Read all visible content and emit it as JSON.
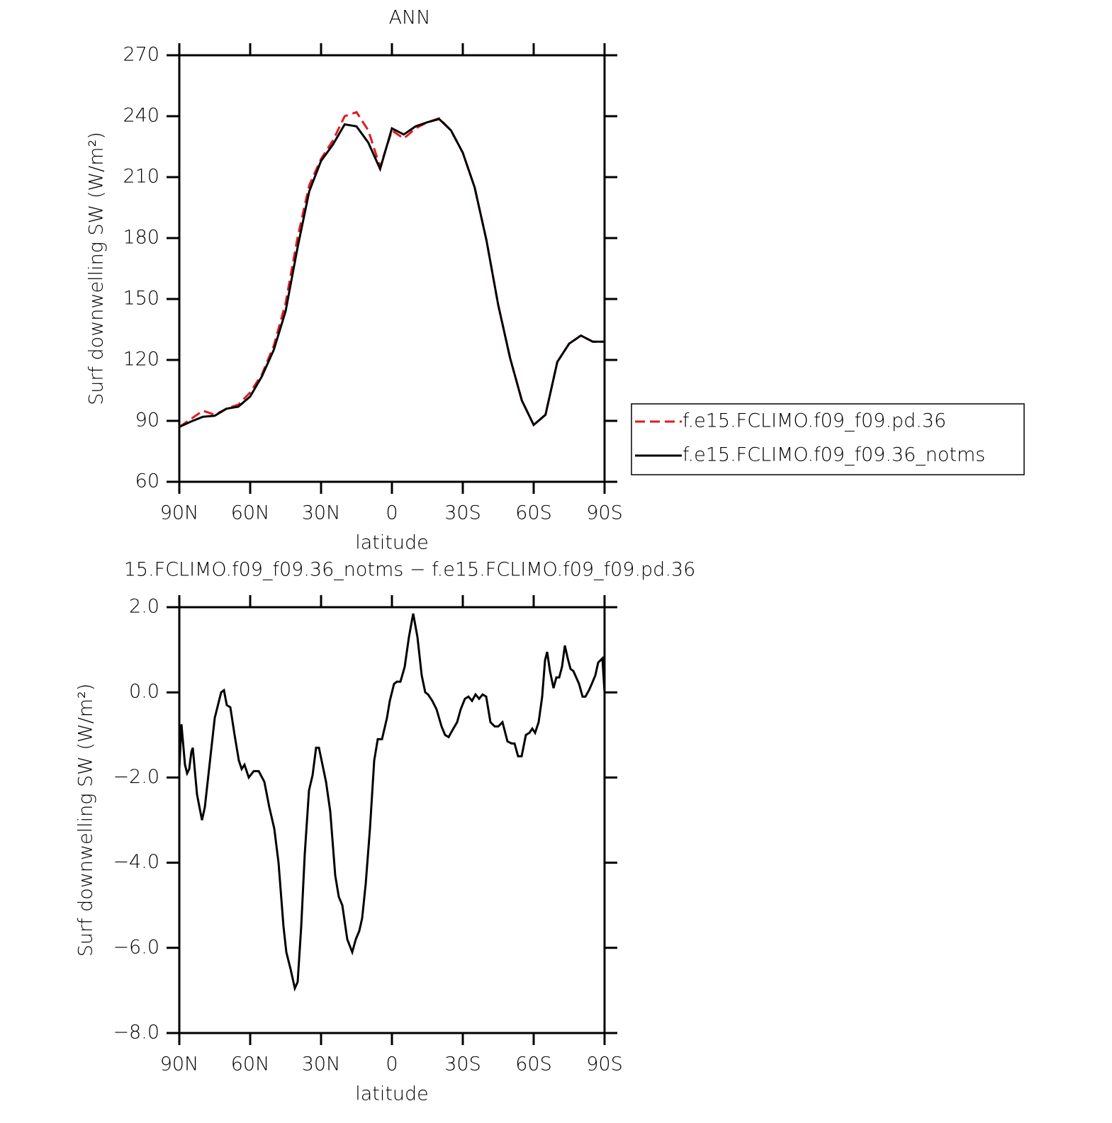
{
  "chart_data": [
    {
      "type": "line",
      "title": "ANN",
      "x_label": "latitude",
      "y_label": "Surf downwelling SW (W/m²)",
      "x": [
        90,
        85,
        80,
        75,
        70,
        65,
        60,
        55,
        50,
        45,
        40,
        35,
        30,
        25,
        20,
        15,
        10,
        5,
        0,
        -5,
        -10,
        -15,
        -20,
        -25,
        -30,
        -35,
        -40,
        -45,
        -50,
        -55,
        -60,
        -65,
        -70,
        -75,
        -80,
        -85,
        -90
      ],
      "series": [
        {
          "name": "f.e15.FCLIMO.f09_f09.pd.36",
          "color": "#e31a1c",
          "line_style": "dashed",
          "values": [
            87,
            91,
            95,
            93,
            96,
            98,
            104,
            113,
            127,
            148,
            180,
            206,
            219,
            228,
            240,
            242,
            233,
            215,
            233,
            229,
            234,
            237,
            239,
            233,
            222,
            205,
            179,
            147,
            121,
            100,
            88,
            93,
            119,
            128,
            132,
            129,
            129
          ]
        },
        {
          "name": "f.e15.FCLIMO.f09_f09.36_notms",
          "color": "#000000",
          "line_style": "solid",
          "values": [
            87,
            89.7,
            92,
            92.5,
            96,
            97,
            102,
            112,
            125,
            144,
            175,
            203,
            218,
            226,
            236,
            235,
            227,
            214,
            234,
            231,
            235,
            237,
            238.6,
            233,
            222,
            205,
            179,
            147,
            121,
            100,
            88,
            93,
            119,
            128,
            132,
            129,
            129
          ]
        }
      ],
      "xlim": [
        90,
        -90
      ],
      "xticks": [
        {
          "value": 90,
          "label": "90N"
        },
        {
          "value": 60,
          "label": "60N"
        },
        {
          "value": 30,
          "label": "30N"
        },
        0,
        {
          "value": -30,
          "label": "30S"
        },
        {
          "value": -60,
          "label": "60S"
        },
        {
          "value": -90,
          "label": "90S"
        }
      ],
      "ylim": [
        60,
        270
      ],
      "yticks": [
        60,
        90,
        120,
        150,
        180,
        210,
        240,
        270
      ],
      "legend": "right"
    },
    {
      "type": "line",
      "title": "15.FCLIMO.f09_f09.36_notms − f.e15.FCLIMO.f09_f09.pd.36",
      "x_label": "latitude",
      "y_label": "Surf downwelling SW (W/m²)",
      "x": [
        90,
        89.1,
        87.6,
        86.7,
        85.8,
        84.9,
        84.3,
        82.5,
        80.4,
        79.2,
        77.4,
        75,
        72.3,
        71.1,
        69.9,
        68.4,
        66.6,
        64.8,
        63.6,
        62.4,
        60.6,
        58.5,
        56.4,
        54,
        51.9,
        49.8,
        48,
        45.9,
        44.7,
        42.9,
        41.1,
        39.9,
        38.4,
        36.9,
        35.1,
        33.6,
        32.1,
        30.9,
        29.4,
        27.9,
        26.1,
        24,
        22.5,
        21,
        18.9,
        16.8,
        15.3,
        13.8,
        12.6,
        11.1,
        9.3,
        7.5,
        6,
        4.2,
        2.1,
        0.9,
        -0.9,
        -2.1,
        -3.6,
        -5.4,
        -7.2,
        -9,
        -10.8,
        -12.6,
        -14.1,
        -15.3,
        -17.1,
        -18.9,
        -21,
        -22.5,
        -24,
        -25.5,
        -27.6,
        -29.1,
        -30.9,
        -32.4,
        -33.9,
        -35.4,
        -36.9,
        -38.4,
        -39.9,
        -41.7,
        -43.5,
        -45,
        -46.8,
        -48.9,
        -50.7,
        -51.9,
        -53.4,
        -54.9,
        -56.7,
        -58.2,
        -59.4,
        -60.6,
        -62.1,
        -63.6,
        -64.8,
        -65.7,
        -66.9,
        -68.4,
        -69.6,
        -70.8,
        -72,
        -73.2,
        -74.4,
        -75.6,
        -76.8,
        -78,
        -79.2,
        -80.7,
        -81.9,
        -83.4,
        -84.6,
        -86.1,
        -87.3,
        -89.1,
        -90
      ],
      "series": [
        {
          "color": "#000000",
          "line_style": "solid",
          "values": [
            -1.8,
            -0.75,
            -1.7,
            -1.9,
            -1.8,
            -1.4,
            -1.3,
            -2.4,
            -3.0,
            -2.7,
            -1.8,
            -0.6,
            0.0,
            0.05,
            -0.3,
            -0.35,
            -1.0,
            -1.6,
            -1.8,
            -1.7,
            -2.0,
            -1.85,
            -1.85,
            -2.1,
            -2.7,
            -3.2,
            -4.0,
            -5.5,
            -6.1,
            -6.5,
            -6.95,
            -6.8,
            -5.5,
            -3.8,
            -2.3,
            -1.95,
            -1.3,
            -1.3,
            -1.7,
            -2.1,
            -2.8,
            -4.3,
            -4.8,
            -5.0,
            -5.8,
            -6.1,
            -5.8,
            -5.6,
            -5.3,
            -4.5,
            -3.2,
            -1.6,
            -1.1,
            -1.1,
            -0.6,
            -0.2,
            0.2,
            0.25,
            0.25,
            0.6,
            1.3,
            1.85,
            1.3,
            0.4,
            0.0,
            -0.05,
            -0.2,
            -0.4,
            -0.8,
            -1.0,
            -1.05,
            -0.9,
            -0.7,
            -0.4,
            -0.15,
            -0.1,
            -0.2,
            -0.05,
            -0.15,
            -0.05,
            -0.1,
            -0.7,
            -0.8,
            -0.8,
            -0.7,
            -1.15,
            -1.2,
            -1.2,
            -1.5,
            -1.5,
            -1.0,
            -0.95,
            -0.85,
            -0.95,
            -0.7,
            -0.1,
            0.75,
            0.95,
            0.5,
            0.1,
            0.35,
            0.35,
            0.6,
            1.1,
            0.8,
            0.55,
            0.5,
            0.35,
            0.2,
            -0.1,
            -0.1,
            0.05,
            0.2,
            0.4,
            0.7,
            0.8,
            0.0
          ]
        }
      ],
      "xlim": [
        90,
        -90
      ],
      "xticks": [
        {
          "value": 90,
          "label": "90N"
        },
        {
          "value": 60,
          "label": "60N"
        },
        {
          "value": 30,
          "label": "30N"
        },
        0,
        {
          "value": -30,
          "label": "30S"
        },
        {
          "value": -60,
          "label": "60S"
        },
        {
          "value": -90,
          "label": "90S"
        }
      ],
      "ylim": [
        -8,
        2
      ],
      "yticks": [
        {
          "value": -8,
          "label": "−8.0"
        },
        {
          "value": -6,
          "label": "−6.0"
        },
        {
          "value": -4,
          "label": "−4.0"
        },
        {
          "value": -2,
          "label": "−2.0"
        },
        {
          "value": 0,
          "label": "0.0"
        },
        {
          "value": 2,
          "label": "2.0"
        }
      ]
    }
  ]
}
